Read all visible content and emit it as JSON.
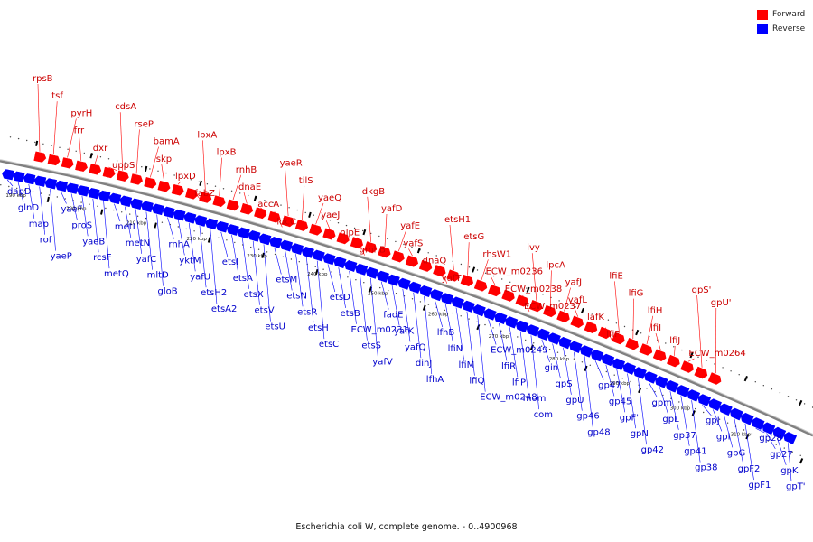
{
  "legend": [
    {
      "label": "Forward",
      "color": "#ff0000"
    },
    {
      "label": "Reverse",
      "color": "#0000ff"
    }
  ],
  "caption": "Escherichia coli W, complete genome. - 0..4900968",
  "colors": {
    "forward": "#ff0000",
    "reverse": "#0000ff",
    "backbone": "#808080"
  },
  "kbp_ticks": [
    "190 kbp",
    "200 kbp",
    "210 kbp",
    "220 kbp",
    "230 kbp",
    "240 kbp",
    "250 kbp",
    "260 kbp",
    "270 kbp",
    "280 kbp",
    "290 kbp",
    "300 kbp",
    "310 kbp"
  ],
  "forward_genes": [
    "rpsB",
    "tsf",
    "pyrH",
    "frr",
    "dxr",
    "uppS",
    "cdsA",
    "rseP",
    "bamA",
    "skp",
    "lpxD",
    "fabZ",
    "lpxA",
    "lpxB",
    "rnhB",
    "dnaE",
    "accA",
    "ldcC",
    "yaeR",
    "tilS",
    "yaeQ",
    "yaeJ",
    "nlpE",
    "gmhB",
    "dkgB",
    "yafD",
    "yafE",
    "yafS",
    "dnaQ",
    "yafT",
    "etsH1",
    "etsG",
    "rhsW1",
    "ECW_m0236",
    "ECW_m0238",
    "ECW_m0237",
    "ivy",
    "lpcA",
    "yafJ",
    "yafL",
    "lafK",
    "lfiF",
    "lfiE",
    "lfiG",
    "lfiH",
    "lfiI",
    "lfiJ",
    "ECW_m0264",
    "gpS'",
    "gpU'"
  ],
  "reverse_genes": [
    "dapD",
    "glnD",
    "map",
    "rof",
    "yaeP",
    "yaeF",
    "proS",
    "yaeB",
    "rcsF",
    "metQ",
    "metI",
    "metN",
    "yafC",
    "mltD",
    "gloB",
    "rnhA",
    "yktM",
    "yafU",
    "etsH2",
    "etsA2",
    "etsI",
    "etsA",
    "etsX",
    "etsV",
    "etsU",
    "etsM",
    "etsN",
    "etsR",
    "etsH",
    "etsC",
    "etsD",
    "etsB",
    "ECW_m0231",
    "etsS",
    "yafV",
    "fadE",
    "yafK",
    "yafQ",
    "dinJ",
    "lfhA",
    "lfhB",
    "lfiN",
    "lfiM",
    "lfiQ",
    "ECW_m0248",
    "ECW_m0249",
    "lfiR",
    "lfiP",
    "mom",
    "com",
    "gin",
    "gpS",
    "gpU",
    "gp46",
    "gp48",
    "gp47",
    "gp45",
    "gpF'",
    "gpN",
    "gp42",
    "gpm",
    "gpL",
    "gp37",
    "gp41",
    "gp38",
    "gpJ",
    "gpI",
    "gpG",
    "gpF2",
    "gpF1",
    "gp28",
    "gp27",
    "gpK",
    "gpT'"
  ]
}
